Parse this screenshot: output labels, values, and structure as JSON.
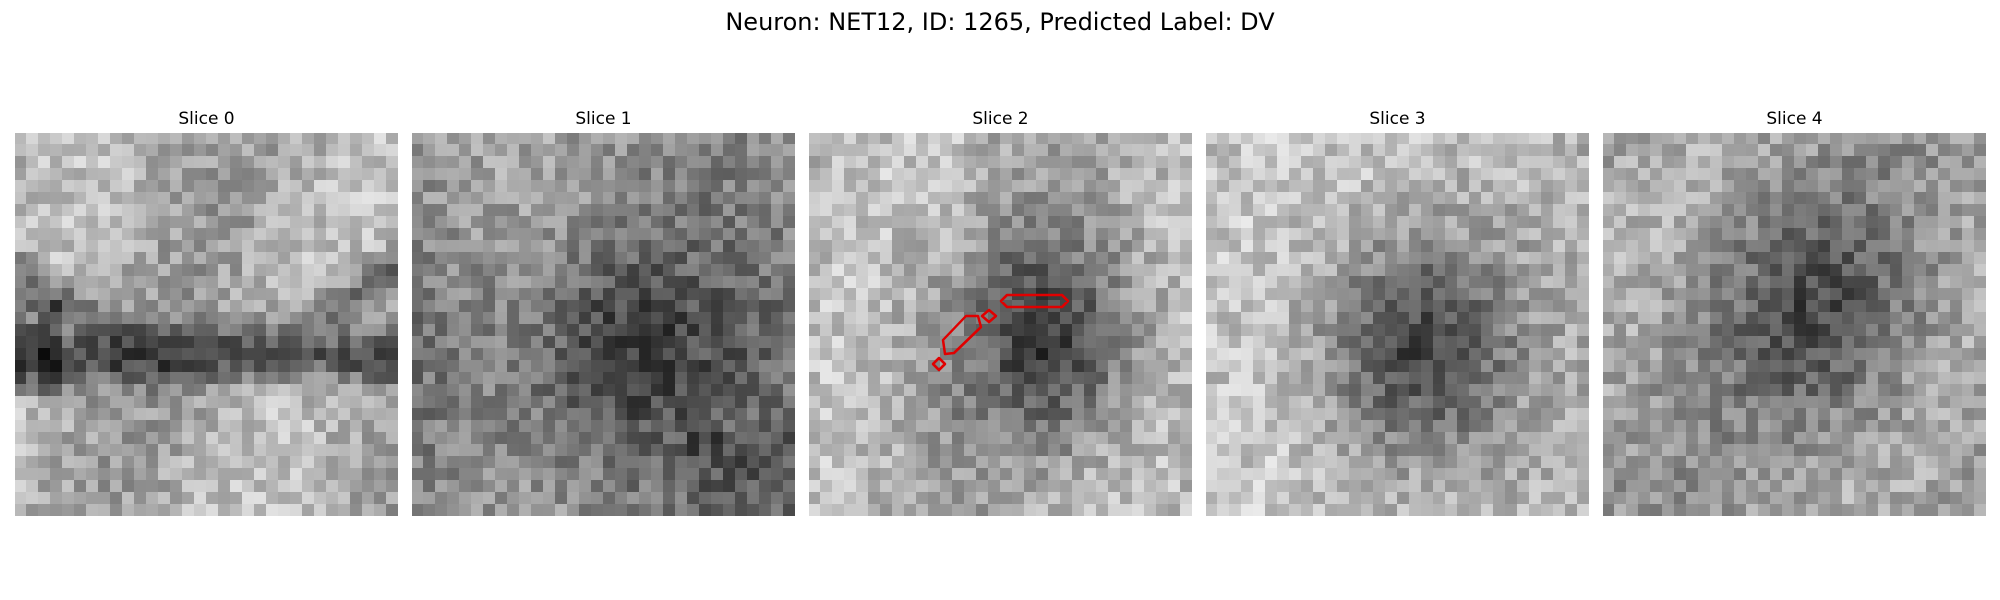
{
  "figure": {
    "title": "Neuron: NET12, ID: 1265, Predicted Label: DV"
  },
  "slices": [
    {
      "id": "slice-0",
      "title": "Slice 0",
      "image_semantic": "grayscale microscopy patch",
      "overlay": "none"
    },
    {
      "id": "slice-1",
      "title": "Slice 1",
      "image_semantic": "grayscale microscopy patch",
      "overlay": "none"
    },
    {
      "id": "slice-2",
      "title": "Slice 2",
      "image_semantic": "grayscale microscopy patch",
      "overlay": "red segmentation contours"
    },
    {
      "id": "slice-3",
      "title": "Slice 3",
      "image_semantic": "grayscale microscopy patch",
      "overlay": "none"
    },
    {
      "id": "slice-4",
      "title": "Slice 4",
      "image_semantic": "grayscale microscopy patch",
      "overlay": "none"
    }
  ],
  "colors": {
    "background": "#ffffff",
    "text": "#000000",
    "contour": "#e00000"
  }
}
